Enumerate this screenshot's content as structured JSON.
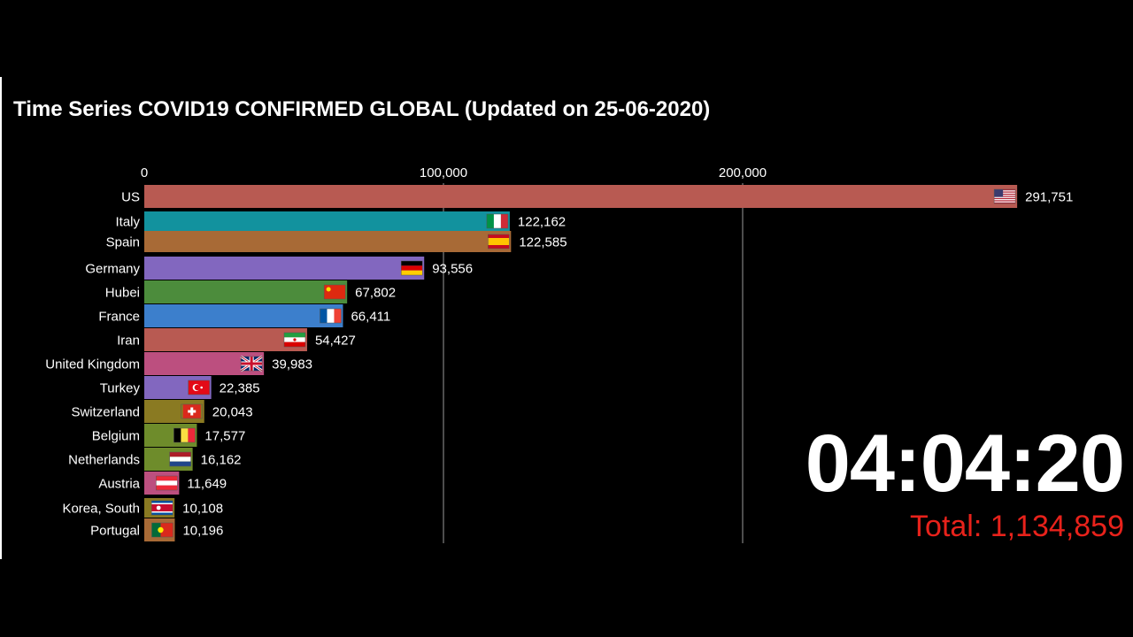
{
  "chart_data": {
    "type": "bar",
    "orientation": "horizontal",
    "title": "Time Series COVID19 CONFIRMED GLOBAL (Updated on 25-06-2020)",
    "xlim": [
      0,
      300000
    ],
    "xticks": [
      {
        "value": 0,
        "label": "0"
      },
      {
        "value": 100000,
        "label": "100,000"
      },
      {
        "value": 200000,
        "label": "200,000"
      }
    ],
    "grid": true,
    "bars": [
      {
        "name": "US",
        "value": 291751,
        "label": "291,751",
        "color": "#b85a52",
        "flag": "us-flag-icon"
      },
      {
        "name": "Italy",
        "value": 122162,
        "label": "122,162",
        "color": "#12929e",
        "flag": "italy-flag-icon"
      },
      {
        "name": "Spain",
        "value": 122585,
        "label": "122,585",
        "color": "#a86a36",
        "flag": "spain-flag-icon"
      },
      {
        "name": "Germany",
        "value": 93556,
        "label": "93,556",
        "color": "#8267bf",
        "flag": "germany-flag-icon"
      },
      {
        "name": "Hubei",
        "value": 67802,
        "label": "67,802",
        "color": "#4c8c3c",
        "flag": "china-flag-icon"
      },
      {
        "name": "France",
        "value": 66411,
        "label": "66,411",
        "color": "#3c7fcc",
        "flag": "france-flag-icon"
      },
      {
        "name": "Iran",
        "value": 54427,
        "label": "54,427",
        "color": "#b85a52",
        "flag": "iran-flag-icon"
      },
      {
        "name": "United Kingdom",
        "value": 39983,
        "label": "39,983",
        "color": "#bc4f7f",
        "flag": "uk-flag-icon"
      },
      {
        "name": "Turkey",
        "value": 22385,
        "label": "22,385",
        "color": "#8267bf",
        "flag": "turkey-flag-icon"
      },
      {
        "name": "Switzerland",
        "value": 20043,
        "label": "20,043",
        "color": "#8a7a22",
        "flag": "switzerland-flag-icon"
      },
      {
        "name": "Belgium",
        "value": 17577,
        "label": "17,577",
        "color": "#6e8c2b",
        "flag": "belgium-flag-icon"
      },
      {
        "name": "Netherlands",
        "value": 16162,
        "label": "16,162",
        "color": "#6e8c2b",
        "flag": "netherlands-flag-icon"
      },
      {
        "name": "Austria",
        "value": 11649,
        "label": "11,649",
        "color": "#bc4f7f",
        "flag": "austria-flag-icon"
      },
      {
        "name": "Korea, South",
        "value": 10108,
        "label": "10,108",
        "color": "#8a7a22",
        "flag": "south-korea-flag-icon"
      },
      {
        "name": "Portugal",
        "value": 10196,
        "label": "10,196",
        "color": "#a86a36",
        "flag": "portugal-flag-icon"
      }
    ]
  },
  "clock": "04:04:20",
  "total": "Total: 1,134,859",
  "colors": {
    "background": "#000000",
    "text": "#ffffff",
    "total": "#e8221b",
    "grid": "#9a9a9a"
  }
}
